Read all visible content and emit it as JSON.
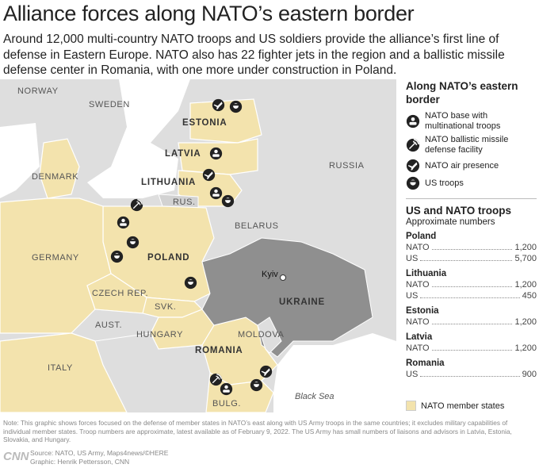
{
  "header": {
    "title": "Alliance forces along NATO’s eastern border",
    "subtitle": "Around 12,000 multi-country NATO troops and US soldiers provide the alliance’s first line of defense in Eastern Europe. NATO also has 22 fighter jets in the region and a ballistic missile defense center in Romania, with one more under construction in Poland."
  },
  "map": {
    "labels": [
      "NORWAY",
      "SWEDEN",
      "ESTONIA",
      "LATVIA",
      "DENMARK",
      "LITHUANIA",
      "RUS.",
      "RUSSIA",
      "BELARUS",
      "GERMANY",
      "POLAND",
      "CZECH REP.",
      "SVK.",
      "UKRAINE",
      "AUST.",
      "HUNGARY",
      "MOLDOVA",
      "ROMANIA",
      "ITALY",
      "BULG.",
      "Kyiv",
      "Black Sea"
    ]
  },
  "legend": {
    "title": "Along NATO’s eastern border",
    "items": [
      "NATO base with multinational troops",
      "NATO ballistic missile defense facility",
      "NATO air presence",
      "US troops"
    ]
  },
  "table": {
    "title": "US and NATO troops",
    "subtitle": "Approximate numbers",
    "groups": [
      {
        "country": "Poland",
        "rows": [
          [
            "NATO",
            "1,200"
          ],
          [
            "US",
            "5,700"
          ]
        ]
      },
      {
        "country": "Lithuania",
        "rows": [
          [
            "NATO",
            "1,200"
          ],
          [
            "US",
            "450"
          ]
        ]
      },
      {
        "country": "Estonia",
        "rows": [
          [
            "NATO",
            "1,200"
          ]
        ]
      },
      {
        "country": "Latvia",
        "rows": [
          [
            "NATO",
            "1,200"
          ]
        ]
      },
      {
        "country": "Romania",
        "rows": [
          [
            "US",
            "900"
          ]
        ]
      }
    ]
  },
  "member_legend": "NATO member states",
  "footer": {
    "note": "Note: This graphic shows forces focused on the defense of member states in NATO’s east along with US Army troops in the same countries; it excludes military capabilities of individual member states. Troop numbers are approximate, latest available as of February 9, 2022. The US Army has small numbers of liaisons and advisors in Latvia, Estonia, Slovakia, and Hungary.",
    "source": "Source: NATO, US Army, Maps4news/©HERE",
    "graphic": "Graphic: Henrik Pettersson, CNN",
    "logo": "CNN"
  }
}
